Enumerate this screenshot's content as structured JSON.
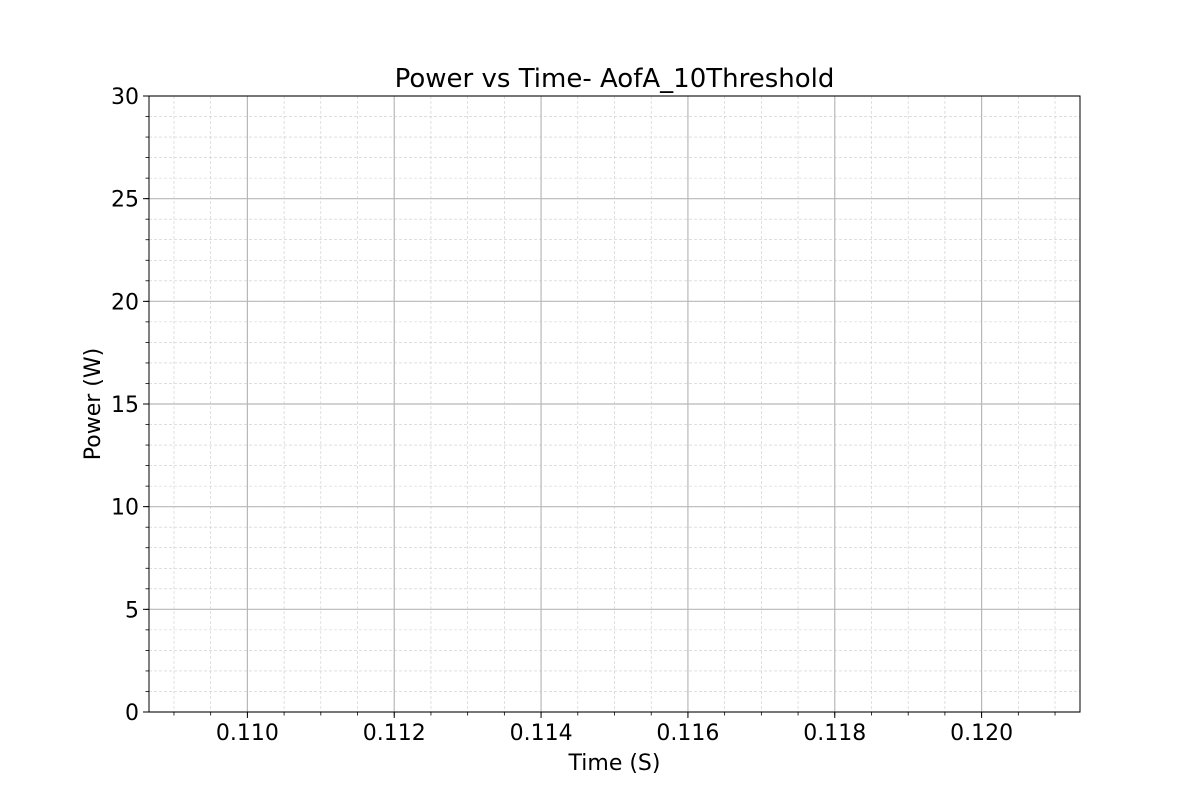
{
  "chart_data": {
    "type": "line",
    "title": "Power vs Time- AofA_10Threshold",
    "xlabel": "Time (S)",
    "ylabel": "Power (W)",
    "xlim": [
      0.10866,
      0.12134
    ],
    "ylim": [
      0,
      30
    ],
    "x_ticks": [
      0.11,
      0.112,
      0.114,
      0.116,
      0.118,
      0.12
    ],
    "x_tick_labels": [
      "0.110",
      "0.112",
      "0.114",
      "0.116",
      "0.118",
      "0.120"
    ],
    "x_minor_step": 0.0005,
    "y_ticks": [
      0,
      5,
      10,
      15,
      20,
      25,
      30
    ],
    "y_tick_labels": [
      "0",
      "5",
      "10",
      "15",
      "20",
      "25",
      "30"
    ],
    "y_minor_step": 1,
    "grid": true,
    "minor_grid": true,
    "series": []
  }
}
